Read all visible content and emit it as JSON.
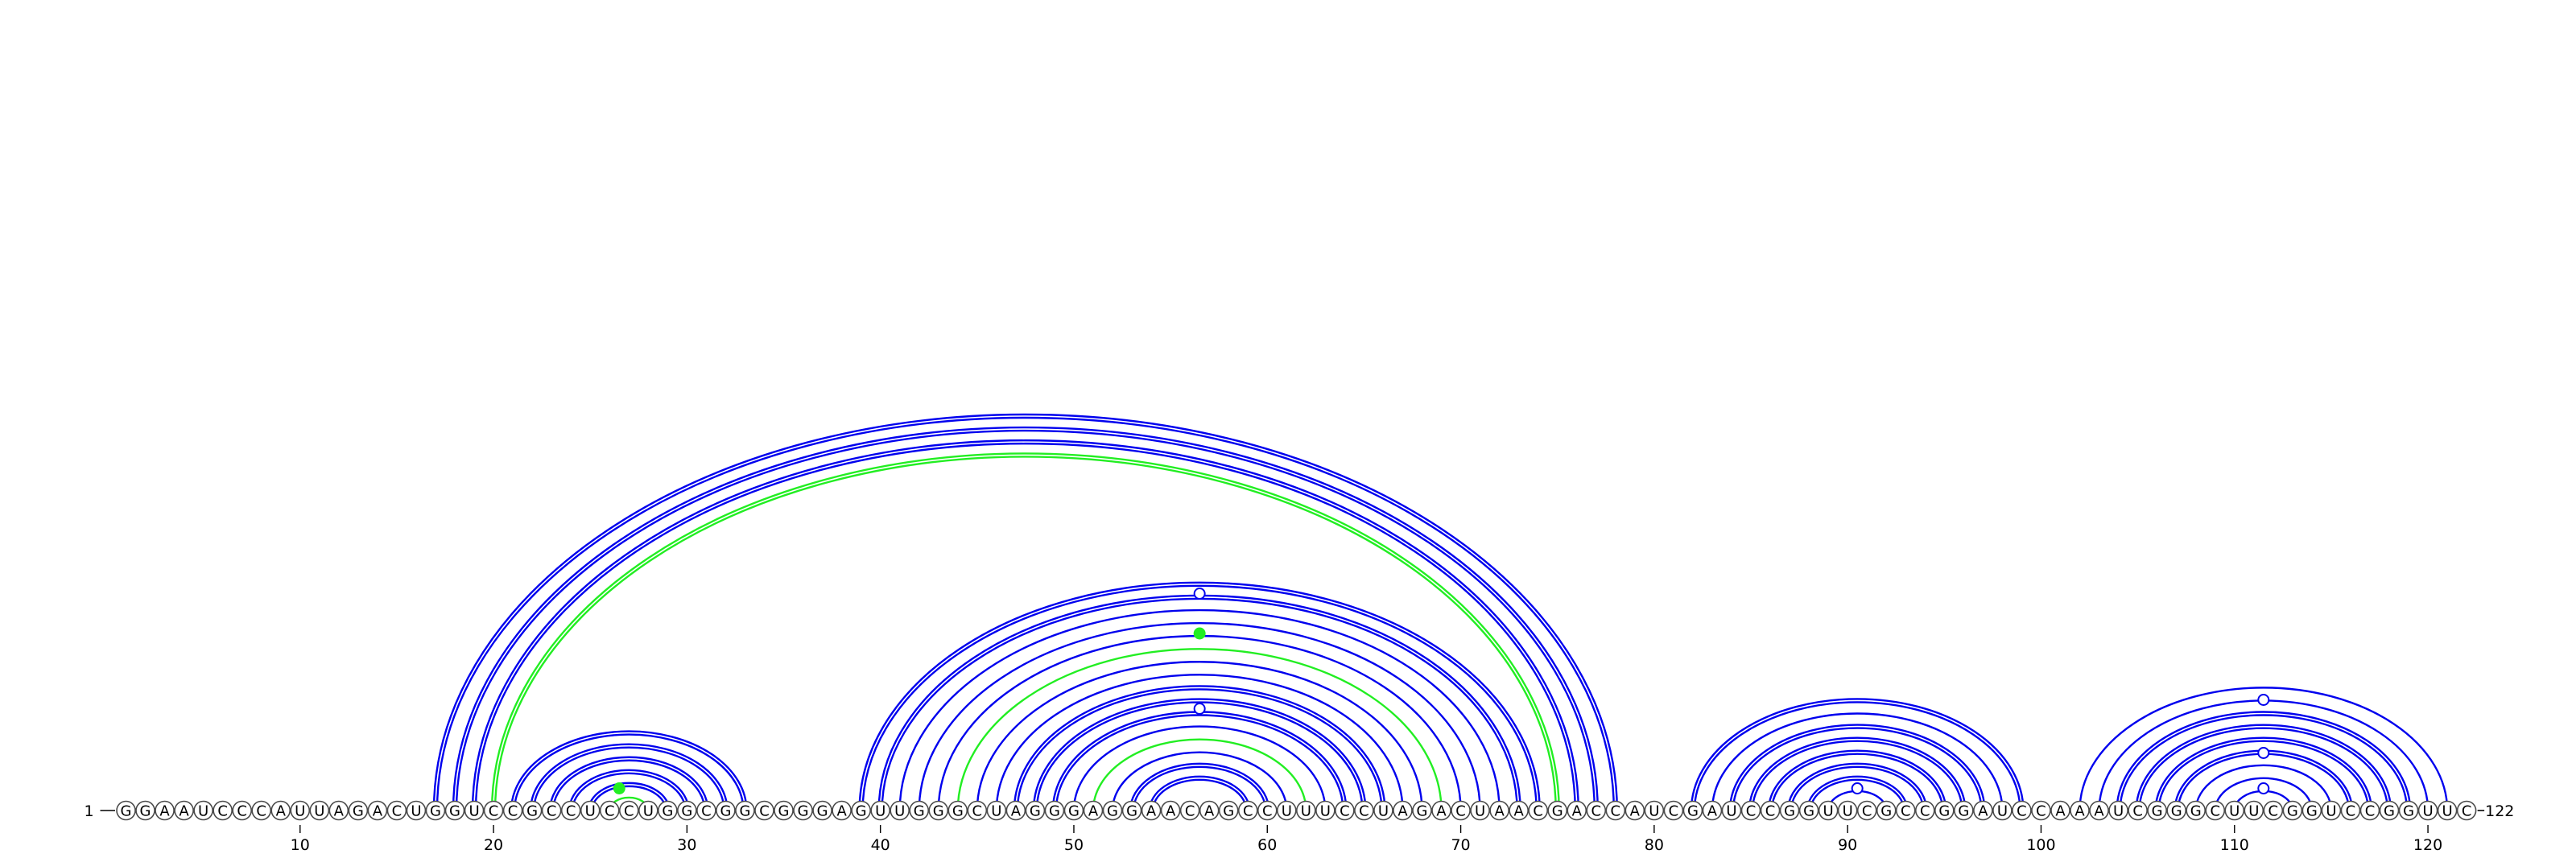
{
  "sequence": "GGAAUCCCAUUAGACUGGUCCGCCUCCUGGCGGCGGGAGUUGGGCUAGGGAGGAACAGCCUUUCCUAGACUAACGACCAUCGAUCCGGUUCGCCGGAUCCAAAUCGGGCUUCGGUCCGGUUC",
  "start_label": "1",
  "end_label": "122",
  "ticks": [
    {
      "index": 10,
      "label": "10"
    },
    {
      "index": 20,
      "label": "20"
    },
    {
      "index": 30,
      "label": "30"
    },
    {
      "index": 40,
      "label": "40"
    },
    {
      "index": 50,
      "label": "50"
    },
    {
      "index": 60,
      "label": "60"
    },
    {
      "index": 70,
      "label": "70"
    },
    {
      "index": 80,
      "label": "80"
    },
    {
      "index": 90,
      "label": "90"
    },
    {
      "index": 100,
      "label": "100"
    },
    {
      "index": 110,
      "label": "110"
    },
    {
      "index": 120,
      "label": "120"
    }
  ],
  "colors": {
    "blue": "#0000ee",
    "green": "#22ee22"
  },
  "arcs": [
    {
      "i": 17,
      "j": 78,
      "color": "blue",
      "double": true
    },
    {
      "i": 18,
      "j": 77,
      "color": "blue",
      "double": true
    },
    {
      "i": 19,
      "j": 76,
      "color": "blue",
      "double": true
    },
    {
      "i": 20,
      "j": 75,
      "color": "green",
      "double": true
    },
    {
      "i": 21,
      "j": 33,
      "color": "blue",
      "double": true
    },
    {
      "i": 22,
      "j": 32,
      "color": "blue",
      "double": true
    },
    {
      "i": 23,
      "j": 31,
      "color": "blue",
      "double": true
    },
    {
      "i": 24,
      "j": 30,
      "color": "blue",
      "double": true
    },
    {
      "i": 25,
      "j": 29,
      "color": "blue",
      "double": true
    },
    {
      "i": 26,
      "j": 28,
      "color": "green",
      "double": false
    },
    {
      "i": 39,
      "j": 74,
      "color": "blue",
      "double": true
    },
    {
      "i": 40,
      "j": 73,
      "color": "blue",
      "double": true
    },
    {
      "i": 41,
      "j": 72,
      "color": "blue",
      "double": false
    },
    {
      "i": 42,
      "j": 71,
      "color": "blue",
      "double": false
    },
    {
      "i": 43,
      "j": 70,
      "color": "blue",
      "double": false
    },
    {
      "i": 44,
      "j": 69,
      "color": "green",
      "double": false
    },
    {
      "i": 45,
      "j": 68,
      "color": "blue",
      "double": false
    },
    {
      "i": 46,
      "j": 67,
      "color": "blue",
      "double": false
    },
    {
      "i": 47,
      "j": 66,
      "color": "blue",
      "double": true
    },
    {
      "i": 48,
      "j": 65,
      "color": "blue",
      "double": true
    },
    {
      "i": 49,
      "j": 64,
      "color": "blue",
      "double": true
    },
    {
      "i": 50,
      "j": 63,
      "color": "blue",
      "double": false
    },
    {
      "i": 51,
      "j": 62,
      "color": "green",
      "double": false
    },
    {
      "i": 52,
      "j": 61,
      "color": "blue",
      "double": false
    },
    {
      "i": 53,
      "j": 60,
      "color": "blue",
      "double": true
    },
    {
      "i": 54,
      "j": 59,
      "color": "blue",
      "double": true
    },
    {
      "i": 82,
      "j": 99,
      "color": "blue",
      "double": true
    },
    {
      "i": 83,
      "j": 98,
      "color": "blue",
      "double": false
    },
    {
      "i": 84,
      "j": 97,
      "color": "blue",
      "double": true
    },
    {
      "i": 85,
      "j": 96,
      "color": "blue",
      "double": true
    },
    {
      "i": 86,
      "j": 95,
      "color": "blue",
      "double": true
    },
    {
      "i": 87,
      "j": 94,
      "color": "blue",
      "double": true
    },
    {
      "i": 88,
      "j": 93,
      "color": "blue",
      "double": true
    },
    {
      "i": 89,
      "j": 92,
      "color": "blue",
      "double": false
    },
    {
      "i": 102,
      "j": 121,
      "color": "blue",
      "double": false
    },
    {
      "i": 103,
      "j": 120,
      "color": "blue",
      "double": false
    },
    {
      "i": 104,
      "j": 119,
      "color": "blue",
      "double": true
    },
    {
      "i": 105,
      "j": 118,
      "color": "blue",
      "double": true
    },
    {
      "i": 106,
      "j": 117,
      "color": "blue",
      "double": true
    },
    {
      "i": 107,
      "j": 116,
      "color": "blue",
      "double": true
    },
    {
      "i": 108,
      "j": 115,
      "color": "blue",
      "double": false
    },
    {
      "i": 109,
      "j": 114,
      "color": "blue",
      "double": false
    },
    {
      "i": 110,
      "j": 113,
      "color": "blue",
      "double": false
    }
  ],
  "markers": [
    {
      "between": [
        56,
        57
      ],
      "level": 0.49,
      "color": "blue",
      "filled": false
    },
    {
      "between": [
        56,
        57
      ],
      "level": 0.4,
      "color": "green",
      "filled": true
    },
    {
      "between": [
        56,
        57
      ],
      "level": 0.23,
      "color": "blue",
      "filled": false
    },
    {
      "between": [
        26,
        27
      ],
      "level": 0.05,
      "color": "green",
      "filled": true
    },
    {
      "between": [
        90,
        91
      ],
      "level": 0.05,
      "color": "blue",
      "filled": false
    },
    {
      "between": [
        111,
        112
      ],
      "level": 0.25,
      "color": "blue",
      "filled": false
    },
    {
      "between": [
        111,
        112
      ],
      "level": 0.13,
      "color": "blue",
      "filled": false
    },
    {
      "between": [
        111,
        112
      ],
      "level": 0.05,
      "color": "blue",
      "filled": false
    }
  ]
}
